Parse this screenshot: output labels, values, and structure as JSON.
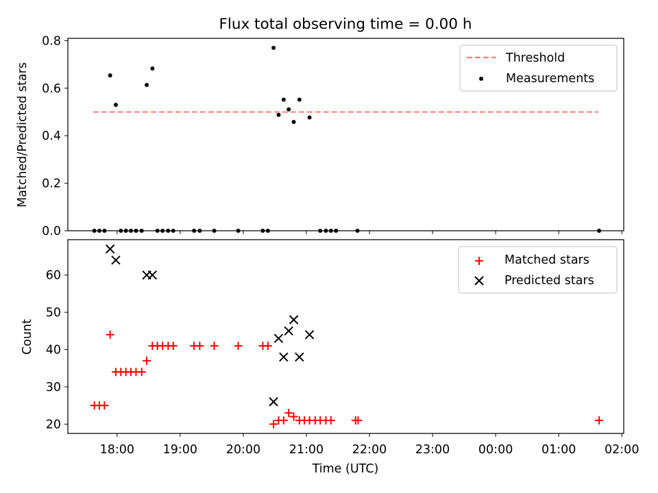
{
  "figure": {
    "title": "Flux total observing time = 0.00 h",
    "xlabel": "Time (UTC)",
    "x_ticks": [
      "18:00",
      "19:00",
      "20:00",
      "21:00",
      "22:00",
      "23:00",
      "00:00",
      "01:00",
      "02:00"
    ],
    "colors": {
      "threshold": "#ff7f7f",
      "measurement": "#000000",
      "matched": "#ff0000",
      "predicted": "#000000"
    }
  },
  "chart_data": [
    {
      "type": "scatter",
      "panel": "top",
      "ylabel": "Matched/Predicted stars",
      "x_unit": "hours since 00:00 UTC of the first night (values above 24 wrap past midnight)",
      "xlim": [
        17.22,
        26.03
      ],
      "ylim": [
        0,
        0.81
      ],
      "y_ticks": [
        "0.0",
        "0.2",
        "0.4",
        "0.6",
        "0.8"
      ],
      "legend": {
        "position": "top-right",
        "entries": [
          "Threshold",
          "Measurements"
        ]
      },
      "threshold": {
        "name": "Threshold",
        "y": 0.5,
        "x": [
          17.62,
          25.63
        ],
        "style": "dashed"
      },
      "series": [
        {
          "name": "Measurements",
          "marker": "dot",
          "x": [
            17.89,
            17.98,
            18.47,
            18.56,
            20.48,
            20.56,
            20.64,
            20.72,
            20.8,
            20.89,
            21.05,
            17.64,
            17.72,
            17.8,
            18.06,
            18.14,
            18.22,
            18.3,
            18.39,
            18.64,
            18.72,
            18.81,
            18.89,
            19.22,
            19.31,
            19.54,
            19.92,
            20.31,
            20.39,
            21.22,
            21.31,
            21.39,
            21.47,
            21.81,
            25.64
          ],
          "y": [
            0.654,
            0.53,
            0.614,
            0.683,
            0.77,
            0.488,
            0.552,
            0.511,
            0.458,
            0.552,
            0.477,
            0,
            0,
            0,
            0,
            0,
            0,
            0,
            0,
            0,
            0,
            0,
            0,
            0,
            0,
            0,
            0,
            0,
            0,
            0,
            0,
            0,
            0,
            0,
            0
          ]
        }
      ]
    },
    {
      "type": "scatter",
      "panel": "bottom",
      "ylabel": "Count",
      "xlim": [
        17.22,
        26.03
      ],
      "ylim": [
        17.5,
        69.5
      ],
      "y_ticks": [
        "20",
        "30",
        "40",
        "50",
        "60"
      ],
      "legend": {
        "position": "top-right",
        "entries": [
          "Matched stars",
          "Predicted stars"
        ]
      },
      "series": [
        {
          "name": "Matched stars",
          "marker": "plus",
          "x": [
            17.64,
            17.72,
            17.8,
            17.89,
            17.98,
            18.06,
            18.14,
            18.22,
            18.3,
            18.39,
            18.47,
            18.56,
            18.64,
            18.72,
            18.81,
            18.89,
            19.22,
            19.31,
            19.54,
            19.92,
            20.31,
            20.39,
            20.48,
            20.56,
            20.64,
            20.72,
            20.8,
            20.89,
            20.97,
            21.05,
            21.14,
            21.22,
            21.31,
            21.39,
            21.78,
            21.82,
            25.64
          ],
          "y": [
            25,
            25,
            25,
            44,
            34,
            34,
            34,
            34,
            34,
            34,
            37,
            41,
            41,
            41,
            41,
            41,
            41,
            41,
            41,
            41,
            41,
            41,
            20,
            21,
            21,
            23,
            22,
            21,
            21,
            21,
            21,
            21,
            21,
            21,
            21,
            21,
            21
          ]
        },
        {
          "name": "Predicted stars",
          "marker": "x",
          "x": [
            17.89,
            17.98,
            18.47,
            18.56,
            20.48,
            20.56,
            20.64,
            20.72,
            20.8,
            20.89,
            21.05
          ],
          "y": [
            67,
            64,
            60,
            60,
            26,
            43,
            38,
            45,
            48,
            38,
            44
          ]
        }
      ]
    }
  ]
}
